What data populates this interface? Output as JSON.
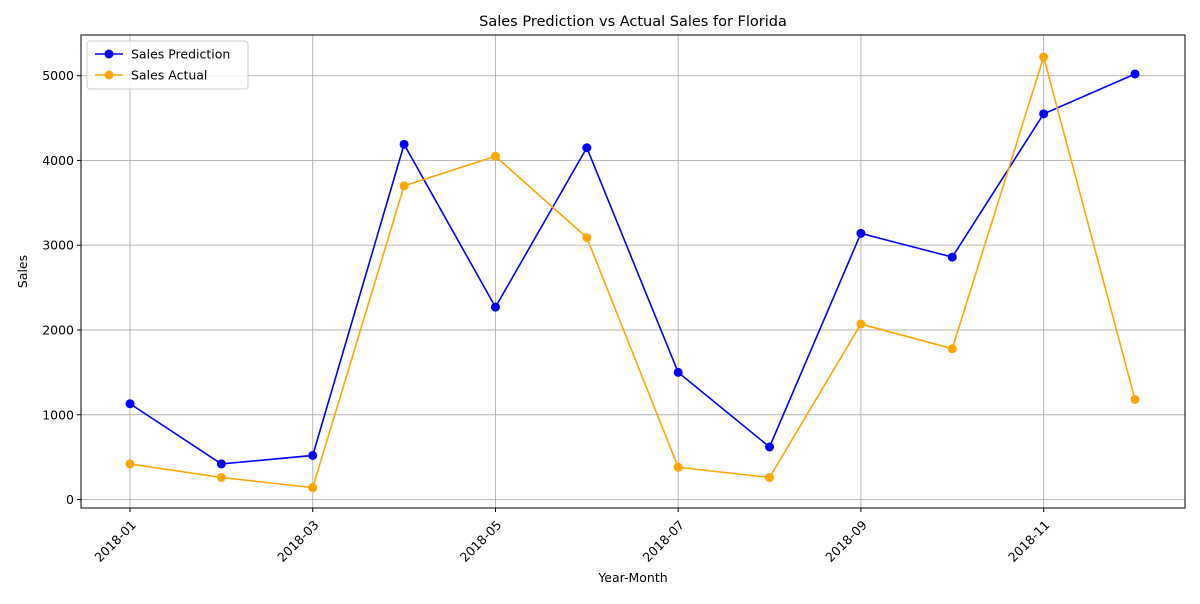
{
  "chart_data": {
    "type": "line",
    "title": "Sales Prediction vs Actual Sales for Florida",
    "xlabel": "Year-Month",
    "ylabel": "Sales",
    "x": [
      "2018-01",
      "2018-02",
      "2018-03",
      "2018-04",
      "2018-05",
      "2018-06",
      "2018-07",
      "2018-08",
      "2018-09",
      "2018-10",
      "2018-11",
      "2018-12"
    ],
    "xticks": [
      "2018-01",
      "2018-03",
      "2018-05",
      "2018-07",
      "2018-09",
      "2018-11"
    ],
    "yticks": [
      0,
      1000,
      2000,
      3000,
      4000,
      5000
    ],
    "ylim": [
      -100,
      5480
    ],
    "grid": true,
    "legend_position": "upper-left",
    "series": [
      {
        "name": "Sales Prediction",
        "color": "#0000ff",
        "values": [
          1130,
          420,
          520,
          4190,
          2270,
          4150,
          1500,
          620,
          3140,
          2860,
          4550,
          5020
        ]
      },
      {
        "name": "Sales Actual",
        "color": "#ffa500",
        "values": [
          420,
          260,
          140,
          3700,
          4050,
          3090,
          380,
          260,
          2070,
          1780,
          5220,
          1180
        ]
      }
    ]
  }
}
